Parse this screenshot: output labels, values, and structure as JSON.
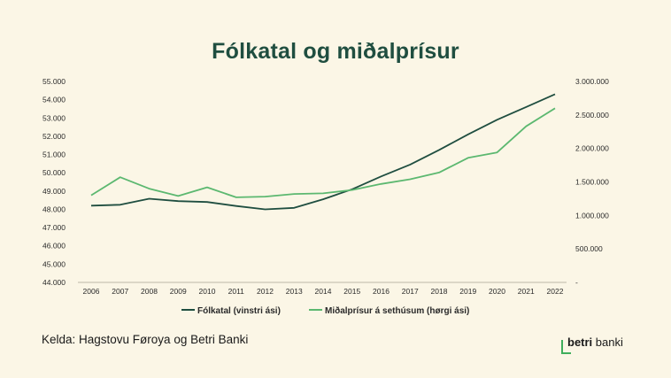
{
  "chart_data": {
    "type": "line",
    "title": "Fólkatal og miðalprísur",
    "categories": [
      "2006",
      "2007",
      "2008",
      "2009",
      "2010",
      "2011",
      "2012",
      "2013",
      "2014",
      "2015",
      "2016",
      "2017",
      "2018",
      "2019",
      "2020",
      "2021",
      "2022"
    ],
    "left_axis": {
      "ylim": [
        44000,
        55000
      ],
      "ticks": [
        "44.000",
        "45.000",
        "46.000",
        "47.000",
        "48.000",
        "49.000",
        "50.000",
        "51.000",
        "52.000",
        "53.000",
        "54.000",
        "55.000"
      ]
    },
    "right_axis": {
      "ylim": [
        0,
        3000000
      ],
      "ticks": [
        "-",
        "500.000",
        "1.000.000",
        "1.500.000",
        "2.000.000",
        "2.500.000",
        "3.000.000"
      ]
    },
    "series": [
      {
        "name": "Fólkatal (vinstri ási)",
        "axis": "left",
        "color": "#1f4e40",
        "values": [
          48200,
          48250,
          48580,
          48450,
          48400,
          48180,
          48000,
          48080,
          48550,
          49100,
          49800,
          50450,
          51250,
          52100,
          52900,
          53600,
          54300
        ]
      },
      {
        "name": "Miðalprísur á sethúsum (hørgi ási)",
        "axis": "right",
        "color": "#5cb870",
        "values": [
          1300000,
          1570000,
          1400000,
          1290000,
          1420000,
          1270000,
          1280000,
          1320000,
          1330000,
          1380000,
          1470000,
          1540000,
          1640000,
          1860000,
          1940000,
          2330000,
          2600000
        ]
      }
    ],
    "legend_position": "bottom",
    "grid": false
  },
  "footer": {
    "source": "Kelda: Hagstovu Føroya  og Betri Banki",
    "logo_bold": "betri",
    "logo_light": " banki"
  }
}
